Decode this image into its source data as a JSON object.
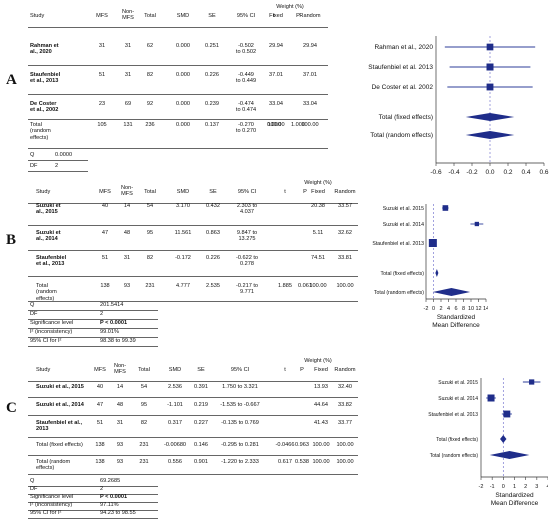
{
  "panels": [
    {
      "letter": "A",
      "headers": {
        "study": "Study",
        "mfs": "MFS",
        "nonmfs": "Non-\nMFS",
        "total": "Total",
        "smd": "SMD",
        "se": "SE",
        "ci": "95% CI",
        "t": "t",
        "p": "P",
        "weight": "Weight (%)",
        "fixed": "Fixed",
        "random": "Random"
      },
      "rows": [
        {
          "study": "Rahman et\nal., 2020",
          "mfs": "31",
          "nonmfs": "31",
          "total": "62",
          "smd": "0.000",
          "se": "0.251",
          "ci": "-0.502\nto 0.502",
          "t": "",
          "p": "",
          "fixed": "29.94",
          "random": "29.94"
        },
        {
          "study": "Staufenbiel\net al., 2013",
          "mfs": "51",
          "nonmfs": "31",
          "total": "82",
          "smd": "0.000",
          "se": "0.226",
          "ci": "-0.449\nto 0.449",
          "t": "",
          "p": "",
          "fixed": "37.01",
          "random": "37.01"
        },
        {
          "study": "De Coster\net al., 2002",
          "mfs": "23",
          "nonmfs": "69",
          "total": "92",
          "smd": "0.000",
          "se": "0.239",
          "ci": "-0.474\nto 0.474",
          "t": "",
          "p": "",
          "fixed": "33.04",
          "random": "33.04"
        },
        {
          "study": "Total\n(random\neffects)",
          "mfs": "105",
          "nonmfs": "131",
          "total": "236",
          "smd": "0.000",
          "se": "0.137",
          "ci": "-0.270\nto 0.270",
          "t": "0.000",
          "p": "1.000",
          "fixed": "100.00",
          "random": "100.00"
        }
      ],
      "stats": [
        {
          "label": "Q",
          "value": "0.0000"
        },
        {
          "label": "DF",
          "value": "2"
        }
      ]
    },
    {
      "letter": "B",
      "headers": {
        "study": "Study",
        "mfs": "MFS",
        "nonmfs": "Non-\nMFS",
        "total": "Total",
        "smd": "SMD",
        "se": "SE",
        "ci": "95% CI",
        "t": "t",
        "p": "P",
        "weight": "Weight (%)",
        "fixed": "Fixed",
        "random": "Random"
      },
      "rows": [
        {
          "study": "Suzuki et\nal., 2015",
          "mfs": "40",
          "nonmfs": "14",
          "total": "54",
          "smd": "3.170",
          "se": "0.432",
          "ci": "2.303 to\n4.037",
          "t": "",
          "p": "",
          "fixed": "20.38",
          "random": "33.57"
        },
        {
          "study": "Suzuki et\nal., 2014",
          "mfs": "47",
          "nonmfs": "48",
          "total": "95",
          "smd": "11.561",
          "se": "0.863",
          "ci": "9.847 to\n13.275",
          "t": "",
          "p": "",
          "fixed": "5.11",
          "random": "32.62"
        },
        {
          "study": "Staufenbiel\net al., 2013",
          "mfs": "51",
          "nonmfs": "31",
          "total": "82",
          "smd": "-0.172",
          "se": "0.226",
          "ci": "-0.622 to\n0.278",
          "t": "",
          "p": "",
          "fixed": "74.51",
          "random": "33.81"
        },
        {
          "study": "Total\n(random\neffects)",
          "mfs": "138",
          "nonmfs": "93",
          "total": "231",
          "smd": "4.777",
          "se": "2.535",
          "ci": "-0.217 to\n9.771",
          "t": "1.885",
          "p": "0.061",
          "fixed": "100.00",
          "random": "100.00"
        }
      ],
      "stats": [
        {
          "label": "Q",
          "value": "201.5414"
        },
        {
          "label": "DF",
          "value": "2"
        },
        {
          "label": "Significance level",
          "value": "P < 0.0001"
        },
        {
          "label": "I² (inconsistency)",
          "value": "99.01%"
        },
        {
          "label": "95% CI for I²",
          "value": "98.38 to 99.39"
        }
      ]
    },
    {
      "letter": "C",
      "headers": {
        "study": "Study",
        "mfs": "MFS",
        "nonmfs": "Non-\nMFS",
        "total": "Total",
        "smd": "SMD",
        "se": "SE",
        "ci": "95% CI",
        "t": "t",
        "p": "P",
        "weight": "Weight (%)",
        "fixed": "Fixed",
        "random": "Random"
      },
      "rows": [
        {
          "study": "Suzuki et al., 2015",
          "mfs": "40",
          "nonmfs": "14",
          "total": "54",
          "smd": "2.536",
          "se": "0.391",
          "ci": "1.750 to 3.321",
          "t": "",
          "p": "",
          "fixed": "13.93",
          "random": "32.40"
        },
        {
          "study": "Suzuki et al., 2014",
          "mfs": "47",
          "nonmfs": "48",
          "total": "95",
          "smd": "-1.101",
          "se": "0.219",
          "ci": "-1.535 to -0.667",
          "t": "",
          "p": "",
          "fixed": "44.64",
          "random": "33.82"
        },
        {
          "study": "Staufenbiel et al.,\n2013",
          "mfs": "51",
          "nonmfs": "31",
          "total": "82",
          "smd": "0.317",
          "se": "0.227",
          "ci": "-0.135 to 0.769",
          "t": "",
          "p": "",
          "fixed": "41.43",
          "random": "33.77"
        },
        {
          "study": "Total (fixed effects)",
          "mfs": "138",
          "nonmfs": "93",
          "total": "231",
          "smd": "-0.00680",
          "se": "0.146",
          "ci": "-0.295 to 0.281",
          "t": "-0.0466",
          "p": "0.963",
          "fixed": "100.00",
          "random": "100.00"
        },
        {
          "study": "Total (random\neffects)",
          "mfs": "138",
          "nonmfs": "93",
          "total": "231",
          "smd": "0.556",
          "se": "0.901",
          "ci": "-1.220 to 2.333",
          "t": "0.617",
          "p": "0.538",
          "fixed": "100.00",
          "random": "100.00"
        }
      ],
      "stats": [
        {
          "label": "Q",
          "value": "69.2685"
        },
        {
          "label": "DF",
          "value": "2"
        },
        {
          "label": "Significance level",
          "value": "P < 0.0001"
        },
        {
          "label": "I² (inconsistency)",
          "value": "97.11%"
        },
        {
          "label": "95% CI for I²",
          "value": "94.23 to 98.55"
        }
      ]
    }
  ],
  "chart_data": [
    {
      "type": "scatter",
      "title": "",
      "xlabel": "",
      "xlim": [
        -0.6,
        0.6
      ],
      "xticks": [
        "-0.6",
        "-0.4",
        "-0.2",
        "0.0",
        "0.2",
        "0.4",
        "0.6"
      ],
      "studies": [
        {
          "label": "Rahman et al., 2020",
          "estimate": 0.0,
          "lower": -0.502,
          "upper": 0.502,
          "weight": 29.94
        },
        {
          "label": "Staufenbiel et al. 2013",
          "estimate": 0.0,
          "lower": -0.449,
          "upper": 0.449,
          "weight": 37.01
        },
        {
          "label": "De Coster et al. 2002",
          "estimate": 0.0,
          "lower": -0.474,
          "upper": 0.474,
          "weight": 33.04
        }
      ],
      "pooled": [
        {
          "label": "Total (fixed effects)",
          "estimate": 0.0,
          "lower": -0.27,
          "upper": 0.27
        },
        {
          "label": "Total (random effects)",
          "estimate": 0.0,
          "lower": -0.27,
          "upper": 0.27
        }
      ],
      "colors": {
        "marker": "#1f2d8a",
        "line": "#2c3e9a",
        "ref": "#7a7ad0"
      }
    },
    {
      "type": "scatter",
      "title": "",
      "xlabel": "Standardized\nMean Difference",
      "xlim": [
        -2,
        14
      ],
      "xticks": [
        "-2",
        "0",
        "2",
        "4",
        "6",
        "8",
        "10",
        "12",
        "14"
      ],
      "studies": [
        {
          "label": "Suzuki et al. 2015",
          "estimate": 3.17,
          "lower": 2.303,
          "upper": 4.037,
          "weight": 20.38
        },
        {
          "label": "Suzuki et al. 2014",
          "estimate": 11.561,
          "lower": 9.847,
          "upper": 13.275,
          "weight": 5.11
        },
        {
          "label": "Staufenbiel et al. 2013",
          "estimate": -0.172,
          "lower": -0.622,
          "upper": 0.278,
          "weight": 74.51
        }
      ],
      "pooled": [
        {
          "label": "Total (fixed effects)",
          "estimate": 0.9,
          "lower": 0.5,
          "upper": 1.3
        },
        {
          "label": "Total (random effects)",
          "estimate": 4.777,
          "lower": -0.217,
          "upper": 9.771
        }
      ],
      "colors": {
        "marker": "#1f2d8a",
        "line": "#2c3e9a",
        "ref": "#7a7ad0"
      }
    },
    {
      "type": "scatter",
      "title": "",
      "xlabel": "Standardized\nMean Difference",
      "xlim": [
        -2,
        4
      ],
      "xticks": [
        "-2",
        "-1",
        "0",
        "1",
        "2",
        "3",
        "4"
      ],
      "studies": [
        {
          "label": "Suzuki et al. 2015",
          "estimate": 2.536,
          "lower": 1.75,
          "upper": 3.321,
          "weight": 13.93
        },
        {
          "label": "Suzuki et al. 2014",
          "estimate": -1.101,
          "lower": -1.535,
          "upper": -0.667,
          "weight": 44.64
        },
        {
          "label": "Staufenbiel et al. 2013",
          "estimate": 0.317,
          "lower": -0.135,
          "upper": 0.769,
          "weight": 41.43
        }
      ],
      "pooled": [
        {
          "label": "Total (fixed effects)",
          "estimate": -0.0068,
          "lower": -0.295,
          "upper": 0.281
        },
        {
          "label": "Total (random effects)",
          "estimate": 0.556,
          "lower": -1.22,
          "upper": 2.333
        }
      ],
      "colors": {
        "marker": "#1f2d8a",
        "line": "#2c3e9a",
        "ref": "#7a7ad0"
      }
    }
  ]
}
